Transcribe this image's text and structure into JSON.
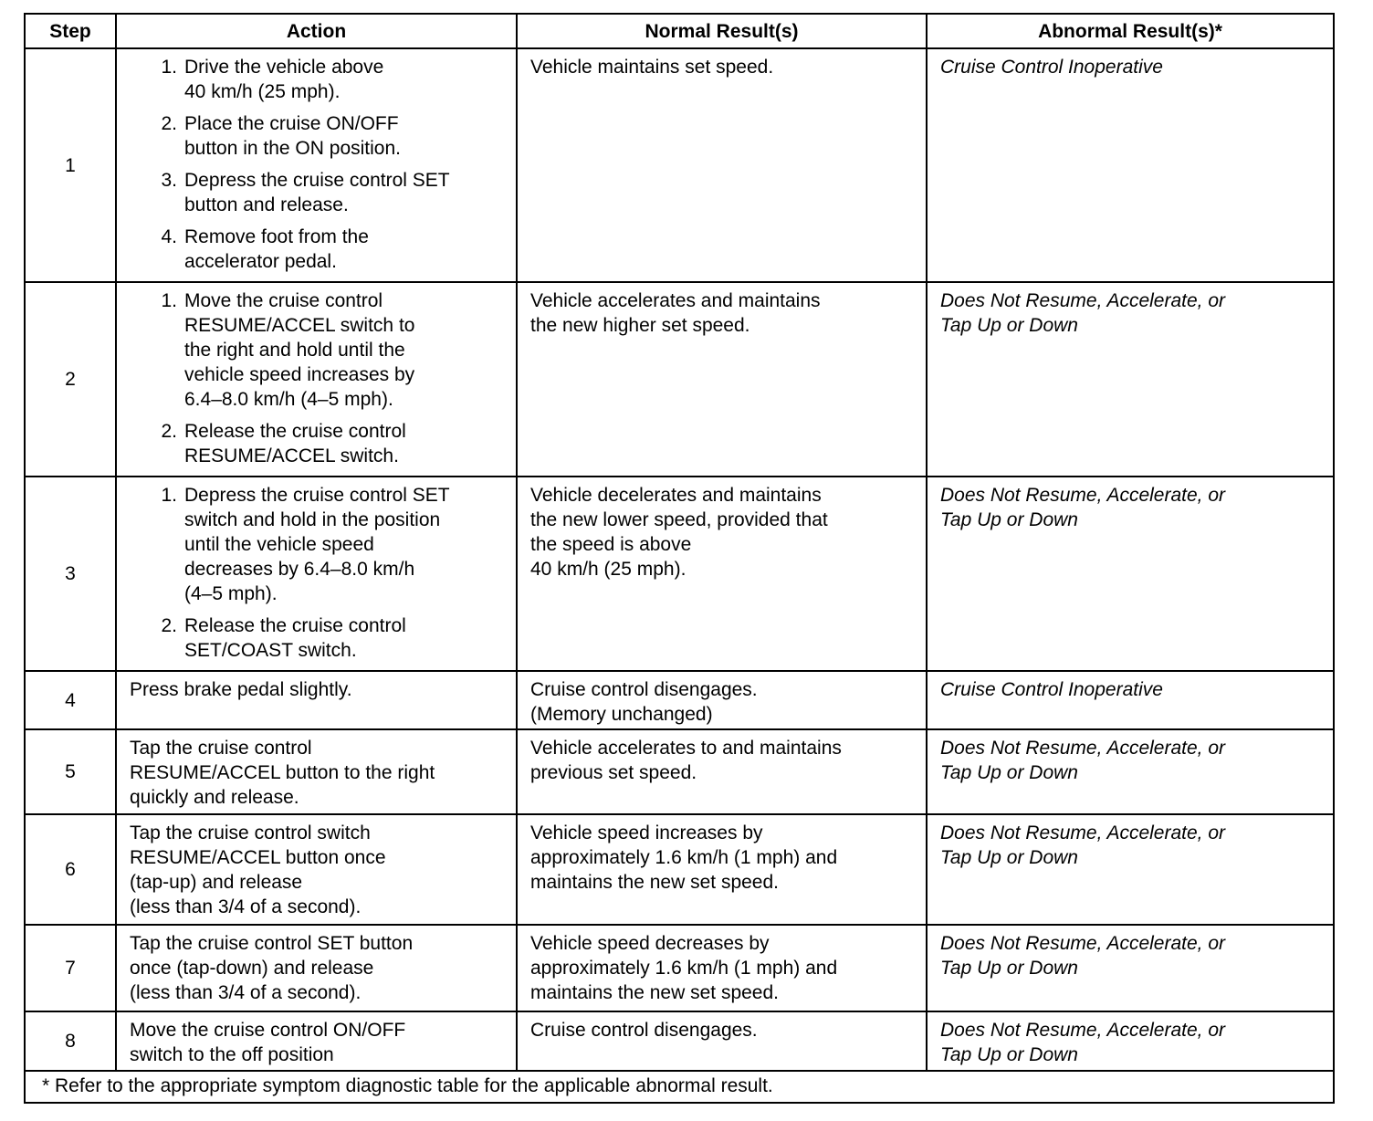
{
  "headers": {
    "step": "Step",
    "action": "Action",
    "normal": "Normal Result(s)",
    "abnormal": "Abnormal Result(s)*"
  },
  "rows": [
    {
      "step": "1",
      "action": [
        "Drive the vehicle above\n40 km/h (25 mph).",
        "Place the cruise ON/OFF\nbutton in the ON position.",
        "Depress the cruise control SET\nbutton and release.",
        "Remove foot from the\naccelerator pedal."
      ],
      "normal": "Vehicle maintains set speed.",
      "abnormal": "Cruise Control Inoperative"
    },
    {
      "step": "2",
      "action": [
        "Move the cruise control\nRESUME/ACCEL switch to\nthe right and hold until the\nvehicle speed increases by\n6.4–8.0 km/h (4–5 mph).",
        "Release the cruise control\nRESUME/ACCEL switch."
      ],
      "normal": "Vehicle accelerates and maintains\nthe new higher set speed.",
      "abnormal": "Does Not Resume, Accelerate, or\nTap Up or Down"
    },
    {
      "step": "3",
      "action": [
        "Depress the cruise control SET\nswitch and hold in the position\nuntil the vehicle speed\ndecreases by 6.4–8.0 km/h\n(4–5 mph).",
        "Release the cruise control\nSET/COAST switch."
      ],
      "normal": "Vehicle decelerates and maintains\nthe new lower speed, provided that\nthe speed is above\n40 km/h (25 mph).",
      "abnormal": "Does Not Resume, Accelerate, or\nTap Up or Down"
    },
    {
      "step": "4",
      "action": "Press brake pedal slightly.",
      "normal": "Cruise control disengages.\n(Memory unchanged)",
      "abnormal": "Cruise Control Inoperative"
    },
    {
      "step": "5",
      "action": "Tap the cruise control\nRESUME/ACCEL button to the right\nquickly and release.",
      "normal": "Vehicle accelerates to and maintains\nprevious set speed.",
      "abnormal": "Does Not Resume, Accelerate, or\nTap Up or Down"
    },
    {
      "step": "6",
      "action": "Tap the cruise control switch\nRESUME/ACCEL button once\n(tap-up) and release\n(less than 3/4 of a second).",
      "normal": "Vehicle speed increases by\napproximately 1.6 km/h (1 mph) and\nmaintains the new set speed.",
      "abnormal": "Does Not Resume, Accelerate, or\nTap Up or Down"
    },
    {
      "step": "7",
      "action": "Tap the cruise control SET button\nonce (tap-down) and release\n(less than 3/4 of a second).",
      "normal": "Vehicle speed decreases by\napproximately 1.6 km/h (1 mph) and\nmaintains the new set speed.",
      "abnormal": "Does Not Resume, Accelerate, or\nTap Up or Down"
    },
    {
      "step": "8",
      "action": "Move the cruise control ON/OFF\nswitch to the off position",
      "normal": "Cruise control disengages.",
      "abnormal": "Does Not Resume, Accelerate, or\nTap Up or Down"
    }
  ],
  "footnote": "* Refer to the appropriate symptom diagnostic table for the applicable abnormal result."
}
